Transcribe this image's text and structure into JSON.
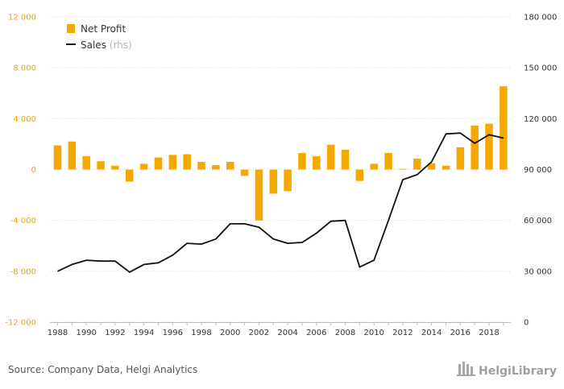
{
  "chart_data": {
    "type": "bar",
    "x": [
      1988,
      1989,
      1990,
      1991,
      1992,
      1993,
      1994,
      1995,
      1996,
      1997,
      1998,
      1999,
      2000,
      2001,
      2002,
      2003,
      2004,
      2005,
      2006,
      2007,
      2008,
      2009,
      2010,
      2011,
      2012,
      2013,
      2014,
      2015,
      2016,
      2017,
      2018,
      2019
    ],
    "series": [
      {
        "name": "Net Profit",
        "type": "bar",
        "axis": "left",
        "color": "#f5a800",
        "values": [
          1900,
          2200,
          1050,
          650,
          300,
          -950,
          450,
          950,
          1150,
          1200,
          600,
          350,
          600,
          -500,
          -4000,
          -1900,
          -1700,
          1300,
          1050,
          1950,
          1550,
          -900,
          450,
          1300,
          50,
          850,
          500,
          300,
          1750,
          3450,
          3600,
          6550
        ]
      },
      {
        "name": "Sales",
        "type": "line",
        "axis": "right",
        "color": "#111111",
        "values": [
          30000,
          34000,
          36500,
          36000,
          36000,
          29500,
          34000,
          35000,
          39500,
          46500,
          46000,
          49000,
          58000,
          58000,
          56000,
          49000,
          46500,
          47000,
          52500,
          59500,
          60000,
          32500,
          36500,
          60000,
          84000,
          87000,
          94500,
          111000,
          111500,
          105500,
          110500,
          108500
        ]
      }
    ],
    "legend": {
      "position": "top-left",
      "items": [
        {
          "label": "Net Profit",
          "note": ""
        },
        {
          "label": "Sales",
          "note": "(rhs)"
        }
      ]
    },
    "y_left": {
      "min": -12000,
      "max": 12000,
      "ticks": [
        -12000,
        -8000,
        -4000,
        0,
        4000,
        8000,
        12000
      ],
      "tick_labels": [
        "-12 000",
        "-8 000",
        "-4 000",
        "0",
        "4 000",
        "8 000",
        "12 000"
      ]
    },
    "y_right": {
      "min": 0,
      "max": 180000,
      "ticks": [
        0,
        30000,
        60000,
        90000,
        120000,
        150000,
        180000
      ],
      "tick_labels": [
        "0",
        "30 000",
        "60 000",
        "90 000",
        "120 000",
        "150 000",
        "180 000"
      ]
    },
    "x_tick_labels": [
      "1988",
      "1990",
      "1992",
      "1994",
      "1996",
      "1998",
      "2000",
      "2002",
      "2004",
      "2006",
      "2008",
      "2010",
      "2012",
      "2014",
      "2016",
      "2018"
    ],
    "grid": "horizontal",
    "title": "",
    "xlabel": "",
    "ylabel": ""
  },
  "footer": {
    "source": "Source: Company Data, Helgi Analytics",
    "brand": "HelgiLibrary"
  }
}
